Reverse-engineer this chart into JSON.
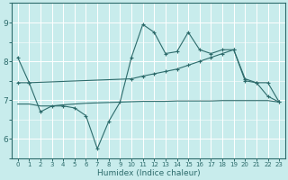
{
  "bg_color": "#c8ecec",
  "grid_color": "#ffffff",
  "line_color": "#2d6b6b",
  "xlabel": "Humidex (Indice chaleur)",
  "ylim": [
    5.5,
    9.5
  ],
  "xlim": [
    -0.5,
    23.5
  ],
  "yticks": [
    6,
    7,
    8,
    9
  ],
  "xtick_labels": [
    "0",
    "1",
    "2",
    "3",
    "4",
    "5",
    "6",
    "7",
    "8",
    "9",
    "10",
    "11",
    "12",
    "13",
    "14",
    "15",
    "16",
    "17",
    "18",
    "19",
    "20",
    "21",
    "22",
    "23"
  ],
  "series1_x": [
    0,
    1,
    2,
    3,
    4,
    5,
    6,
    7,
    8,
    9,
    10,
    11,
    12,
    13,
    14,
    15,
    16,
    17,
    18,
    19,
    20,
    21,
    22,
    23
  ],
  "series1_y": [
    8.1,
    7.45,
    6.7,
    6.85,
    6.85,
    6.8,
    6.6,
    5.75,
    6.45,
    6.95,
    8.1,
    8.95,
    8.75,
    8.2,
    8.25,
    8.75,
    8.3,
    8.2,
    8.3,
    8.3,
    7.55,
    7.45,
    7.1,
    6.95
  ],
  "series2_x": [
    0,
    1,
    10,
    11,
    12,
    13,
    14,
    15,
    16,
    17,
    18,
    19,
    20,
    21,
    22,
    23
  ],
  "series2_y": [
    7.45,
    7.45,
    7.55,
    7.62,
    7.68,
    7.74,
    7.8,
    7.9,
    8.0,
    8.1,
    8.2,
    8.3,
    7.5,
    7.45,
    7.45,
    6.95
  ],
  "series3_x": [
    0,
    1,
    2,
    3,
    4,
    5,
    6,
    7,
    8,
    9,
    10,
    11,
    12,
    13,
    14,
    15,
    16,
    17,
    18,
    19,
    20,
    21,
    22,
    23
  ],
  "series3_y": [
    6.9,
    6.9,
    6.85,
    6.85,
    6.88,
    6.9,
    6.92,
    6.93,
    6.94,
    6.95,
    6.96,
    6.97,
    6.97,
    6.97,
    6.98,
    6.98,
    6.98,
    6.98,
    6.99,
    6.99,
    6.99,
    6.99,
    6.99,
    6.95
  ]
}
